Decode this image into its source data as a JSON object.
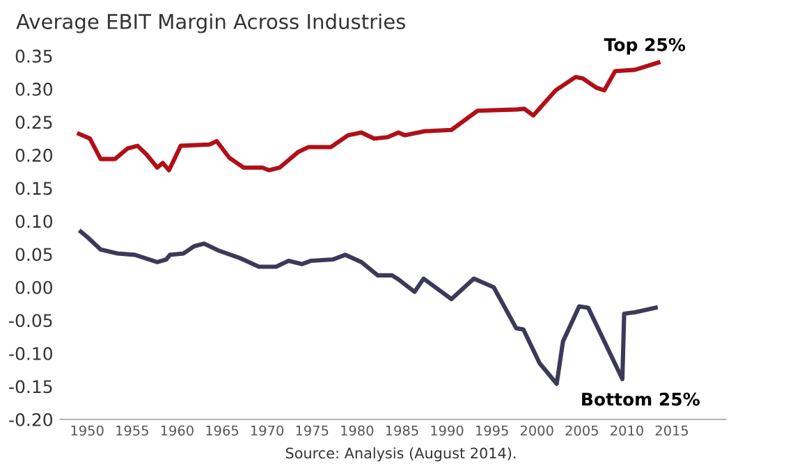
{
  "chart_data": {
    "type": "line",
    "title": "Average EBIT Margin Across Industries",
    "xlim": [
      1947,
      2021
    ],
    "ylim": [
      -0.2,
      0.35
    ],
    "xticks": [
      1950,
      1955,
      1960,
      1965,
      1970,
      1975,
      1980,
      1985,
      1990,
      1995,
      2000,
      2005,
      2010,
      2015
    ],
    "yticks": [
      {
        "value": 0.35,
        "label": "0.35"
      },
      {
        "value": 0.3,
        "label": "0.30"
      },
      {
        "value": 0.25,
        "label": "0.25"
      },
      {
        "value": 0.2,
        "label": "0.20"
      },
      {
        "value": 0.15,
        "label": "0.15"
      },
      {
        "value": 0.1,
        "label": "0.10"
      },
      {
        "value": 0.05,
        "label": "0.05"
      },
      {
        "value": 0,
        "label": "0.00"
      },
      {
        "value": -0.05,
        "label": "-0.05"
      },
      {
        "value": -0.1,
        "label": "-0.10"
      },
      {
        "value": -0.15,
        "label": "-0.15"
      },
      {
        "value": -0.2,
        "label": "-0.20"
      }
    ],
    "grid": false,
    "legend": false,
    "marker": "none",
    "line_style": "solid",
    "series": [
      {
        "name": "Top 25%",
        "color": "#b01018",
        "x": [
          1949.1,
          1950.3,
          1951.5,
          1953.1,
          1954.5,
          1955.6,
          1956.6,
          1957.8,
          1958.4,
          1959.1,
          1960.4,
          1963.6,
          1964.4,
          1964.8,
          1965.8,
          1967.4,
          1969.5,
          1970.2,
          1971.4,
          1973.5,
          1974.6,
          1977.1,
          1979.0,
          1980.5,
          1981.9,
          1983.4,
          1984.6,
          1985.3,
          1987.5,
          1990.5,
          1993.4,
          1997.8,
          1998.6,
          1999.6,
          2002.1,
          2004.3,
          2005.1,
          2006.6,
          2007.5,
          2008.7,
          2010.9,
          2013.5
        ],
        "values": [
          0.232,
          0.225,
          0.194,
          0.194,
          0.21,
          0.214,
          0.201,
          0.181,
          0.188,
          0.177,
          0.214,
          0.216,
          0.221,
          0.214,
          0.196,
          0.181,
          0.181,
          0.177,
          0.181,
          0.205,
          0.212,
          0.212,
          0.23,
          0.234,
          0.225,
          0.227,
          0.234,
          0.23,
          0.236,
          0.238,
          0.267,
          0.269,
          0.27,
          0.26,
          0.298,
          0.318,
          0.316,
          0.302,
          0.298,
          0.327,
          0.329,
          0.34
        ]
      },
      {
        "name": "Bottom 25%",
        "color": "#3c3a58",
        "x": [
          1949.3,
          1950.1,
          1951.5,
          1953.4,
          1955.3,
          1957.8,
          1958.8,
          1959.2,
          1960.7,
          1961.9,
          1963.0,
          1964.7,
          1967.0,
          1969.1,
          1971.0,
          1972.4,
          1973.9,
          1974.9,
          1977.3,
          1978.7,
          1980.5,
          1982.3,
          1983.9,
          1984.6,
          1986.4,
          1987.4,
          1990.5,
          1993.0,
          1995.2,
          1997.7,
          1998.5,
          2000.3,
          2002.2,
          2002.9,
          2004.7,
          2005.7,
          2009.5,
          2009.7,
          2010.9,
          2013.2
        ],
        "values": [
          0.084,
          0.075,
          0.057,
          0.051,
          0.049,
          0.038,
          0.042,
          0.049,
          0.051,
          0.062,
          0.066,
          0.055,
          0.044,
          0.031,
          0.031,
          0.04,
          0.035,
          0.04,
          0.042,
          0.049,
          0.038,
          0.018,
          0.018,
          0.012,
          -0.007,
          0.013,
          -0.018,
          0.013,
          0.0,
          -0.062,
          -0.064,
          -0.115,
          -0.146,
          -0.082,
          -0.029,
          -0.031,
          -0.139,
          -0.04,
          -0.038,
          -0.031
        ]
      }
    ],
    "annotations": [
      "Source: Analysis (August 2014)."
    ]
  }
}
